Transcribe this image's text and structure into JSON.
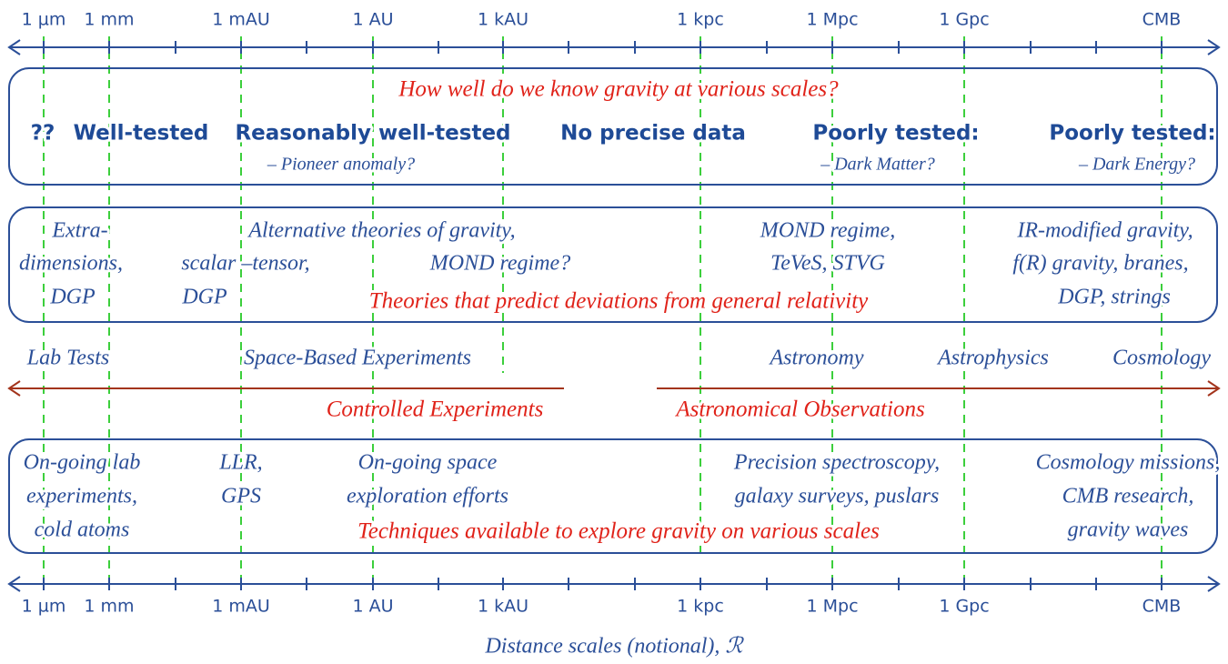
{
  "scale_labels": [
    "1 µm",
    "1 mm",
    "1 mAU",
    "1 AU",
    "1 kAU",
    "1 kpc",
    "1 Mpc",
    "1 Gpc",
    "CMB"
  ],
  "knowledge": {
    "title": "How well do we know gravity at various scales?",
    "headings": [
      "??",
      "Well-tested",
      "Reasonably well-tested",
      "No precise data",
      "Poorly tested:",
      "Poorly tested:"
    ],
    "notes": [
      "– Pioneer anomaly?",
      "– Dark Matter?",
      "– Dark Energy?"
    ]
  },
  "theories": {
    "title": "Theories that predict deviations from general relativity",
    "groups": [
      [
        "Extra-",
        "dimensions,",
        "DGP"
      ],
      [
        "Alternative theories of gravity,"
      ],
      [
        "scalar –tensor,",
        "DGP"
      ],
      [
        "MOND regime?"
      ],
      [
        "MOND regime,",
        "TeVeS, STVG"
      ],
      [
        "IR-modified gravity,",
        "f(R) gravity, branes,",
        "DGP, strings"
      ]
    ]
  },
  "experiment_types": [
    "Lab Tests",
    "Space-Based Experiments",
    "Astronomy",
    "Astrophysics",
    "Cosmology"
  ],
  "approaches": [
    "Controlled Experiments",
    "Astronomical Observations"
  ],
  "techniques": {
    "title": "Techniques available to explore gravity on various scales",
    "groups": [
      [
        "On-going lab",
        "experiments,",
        "cold atoms"
      ],
      [
        "LLR,",
        "GPS"
      ],
      [
        "On-going space",
        "exploration efforts"
      ],
      [
        "Precision spectroscopy,",
        "galaxy surveys, puslars"
      ],
      [
        "Cosmology missions,",
        "CMB research,",
        "gravity waves"
      ]
    ]
  },
  "caption": "Distance scales (notional), ℛ"
}
